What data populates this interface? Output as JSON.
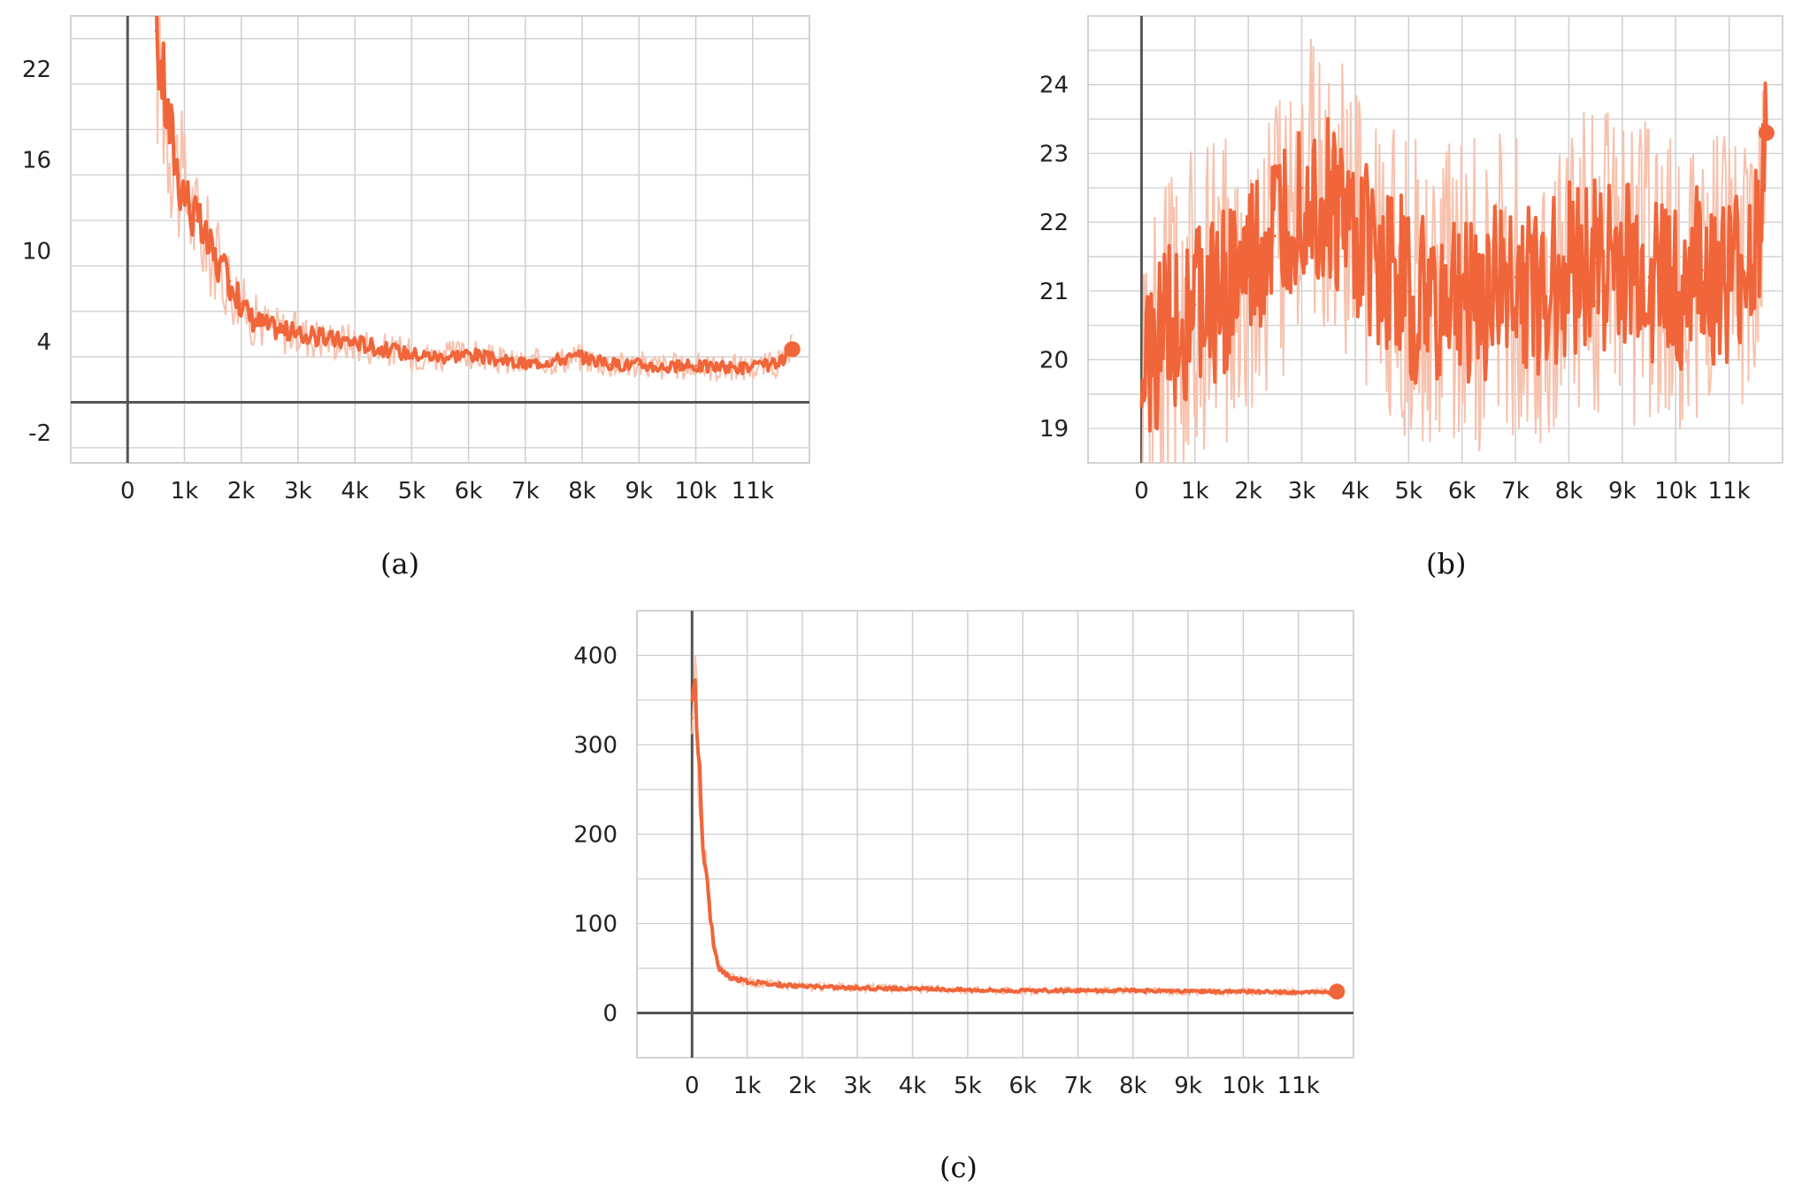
{
  "colors": {
    "line": "#f0653a",
    "raw": "#f7c2ad",
    "grid": "#cfcfcf",
    "axis": "#555555",
    "frame": "#bdbdbd"
  },
  "captions": {
    "a": "(a)",
    "b": "(b)",
    "c": "(c)"
  },
  "chart_data": [
    {
      "id": "a",
      "type": "line",
      "title": "",
      "xlabel": "",
      "ylabel": "",
      "xlim": [
        -1000,
        12000
      ],
      "ylim": [
        -4,
        25.5
      ],
      "grid": true,
      "x_ticks": [
        0,
        1000,
        2000,
        3000,
        4000,
        5000,
        6000,
        7000,
        8000,
        9000,
        10000,
        11000
      ],
      "x_tick_labels": [
        "0",
        "1k",
        "2k",
        "3k",
        "4k",
        "5k",
        "6k",
        "7k",
        "8k",
        "9k",
        "10k",
        "11k"
      ],
      "y_ticks": [
        -2,
        4,
        10,
        16,
        22
      ],
      "y_tick_labels": [
        "-2",
        "4",
        "10",
        "16",
        "22"
      ],
      "series": [
        {
          "x": [
            500,
            600,
            700,
            800,
            900,
            1000,
            1100,
            1200,
            1400,
            1600,
            1800,
            2000,
            2200,
            2500,
            3000,
            3500,
            4000,
            4500,
            5000,
            5500,
            6000,
            6500,
            7000,
            7500,
            8000,
            8500,
            9000,
            9500,
            10000,
            10500,
            11000,
            11500,
            11700
          ],
          "y": [
            24.5,
            22,
            19,
            17,
            15,
            14,
            13,
            12,
            10.5,
            9,
            8,
            6.5,
            5.5,
            5,
            4.5,
            4.2,
            4,
            3.5,
            3.2,
            3,
            3.2,
            2.8,
            2.5,
            2.8,
            3,
            2.5,
            2.5,
            2.3,
            2.4,
            2.3,
            2.3,
            2.6,
            3.5
          ]
        }
      ]
    },
    {
      "id": "b",
      "type": "line",
      "title": "",
      "xlabel": "",
      "ylabel": "",
      "xlim": [
        -1000,
        12000
      ],
      "ylim": [
        18.5,
        25
      ],
      "grid": true,
      "x_ticks": [
        0,
        1000,
        2000,
        3000,
        4000,
        5000,
        6000,
        7000,
        8000,
        9000,
        10000,
        11000
      ],
      "x_tick_labels": [
        "0",
        "1k",
        "2k",
        "3k",
        "4k",
        "5k",
        "6k",
        "7k",
        "8k",
        "9k",
        "10k",
        "11k"
      ],
      "y_ticks": [
        19,
        20,
        21,
        22,
        23,
        24
      ],
      "y_tick_labels": [
        "19",
        "20",
        "21",
        "22",
        "23",
        "24"
      ],
      "series": [
        {
          "x": [
            0,
            500,
            1000,
            1500,
            2000,
            2500,
            3000,
            3500,
            4000,
            4500,
            5000,
            5500,
            6000,
            6500,
            7000,
            7500,
            8000,
            8500,
            9000,
            9500,
            10000,
            10500,
            11000,
            11500,
            11700
          ],
          "y": [
            19.5,
            20.5,
            20.8,
            21.0,
            21.3,
            21.8,
            22.5,
            22.3,
            21.8,
            21.4,
            21.0,
            20.8,
            21.0,
            20.9,
            21.2,
            21.0,
            21.3,
            21.4,
            21.3,
            21.2,
            21.1,
            21.3,
            21.0,
            21.5,
            23.3
          ]
        }
      ]
    },
    {
      "id": "c",
      "type": "line",
      "title": "",
      "xlabel": "",
      "ylabel": "",
      "xlim": [
        -1000,
        12000
      ],
      "ylim": [
        -50,
        450
      ],
      "grid": true,
      "x_ticks": [
        0,
        1000,
        2000,
        3000,
        4000,
        5000,
        6000,
        7000,
        8000,
        9000,
        10000,
        11000
      ],
      "x_tick_labels": [
        "0",
        "1k",
        "2k",
        "3k",
        "4k",
        "5k",
        "6k",
        "7k",
        "8k",
        "9k",
        "10k",
        "11k"
      ],
      "y_ticks": [
        0,
        100,
        200,
        300,
        400
      ],
      "y_tick_labels": [
        "0",
        "100",
        "200",
        "300",
        "400"
      ],
      "series": [
        {
          "x": [
            0,
            50,
            100,
            150,
            200,
            300,
            400,
            500,
            600,
            700,
            800,
            1000,
            1500,
            2000,
            3000,
            4000,
            5000,
            6000,
            7000,
            8000,
            9000,
            10000,
            11000,
            11700
          ],
          "y": [
            330,
            370,
            300,
            250,
            190,
            130,
            70,
            50,
            45,
            40,
            38,
            35,
            32,
            30,
            28,
            27,
            26,
            25,
            25,
            25,
            24,
            24,
            23,
            24
          ]
        }
      ]
    }
  ]
}
